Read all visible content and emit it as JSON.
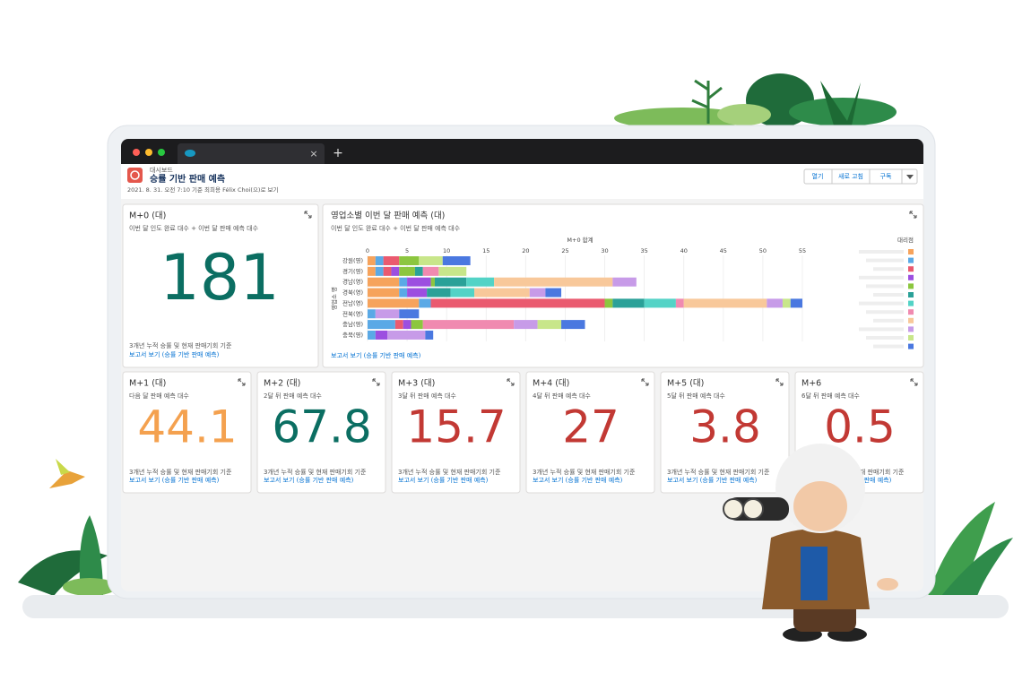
{
  "browser": {
    "new_tab": "+",
    "close_tab": "×"
  },
  "header": {
    "breadcrumb": "대시보드",
    "title": "승률 기반 판매 예측",
    "subtitle": "2021. 8. 31. 오전 7:10 기준 최희용 Félix Choi(으)로 보기",
    "buttons": [
      "열기",
      "새로 고침",
      "구독"
    ]
  },
  "summary_card": {
    "title": "M+0 (대)",
    "subtitle": "이번 달 인도 완료 대수 + 이번 달 판매 예측 대수",
    "value": 181,
    "color": "#0b6e62",
    "footer": "3개년 누적 승률 및 현재 판매기회 기준",
    "link": "보고서 보기 (승률 기반 판매 예측)"
  },
  "chart_card": {
    "title": "영업소별 이번 달 판매 예측 (대)",
    "subtitle": "이번 달 인도 완료 대수 + 이번 달 판매 예측 대수",
    "link": "보고서 보기 (승률 기반 판매 예측)",
    "chart_data": {
      "type": "bar",
      "orientation": "horizontal",
      "stacked": true,
      "x_label": "M+0 합계",
      "y_label": "영업소 명",
      "legend_title": "대리점",
      "categories": [
        "강원(영)",
        "경기(영)",
        "경남(영)",
        "경북(영)",
        "전남(영)",
        "전북(영)",
        "충남(영)",
        "충북(영)"
      ],
      "xlim": [
        0,
        55
      ],
      "xticks": [
        0,
        5,
        10,
        15,
        20,
        25,
        30,
        35,
        40,
        45,
        50,
        55
      ],
      "grid": true,
      "series": [
        {
          "color": "#f6a35c",
          "values": [
            1,
            1,
            4,
            4,
            6.5,
            null,
            null,
            null
          ]
        },
        {
          "color": "#5aa9e6",
          "values": [
            1,
            1,
            1,
            1,
            1.5,
            1,
            3.5,
            1
          ]
        },
        {
          "color": "#ea5a6f",
          "values": [
            2,
            1,
            null,
            null,
            22,
            null,
            1,
            null
          ]
        },
        {
          "color": "#9c4fe0",
          "values": [
            null,
            1,
            3,
            2.5,
            null,
            null,
            1,
            1.5
          ]
        },
        {
          "color": "#8cc63f",
          "values": [
            2.5,
            2,
            0.5,
            null,
            1,
            null,
            1.5,
            null
          ]
        },
        {
          "color": "#2aa198",
          "values": [
            null,
            1,
            4,
            3,
            4,
            null,
            null,
            null
          ]
        },
        {
          "color": "#53d3c6",
          "values": [
            null,
            null,
            3.5,
            3,
            4,
            null,
            null,
            null
          ]
        },
        {
          "color": "#f08ab0",
          "values": [
            null,
            2,
            null,
            null,
            1,
            null,
            11.5,
            null
          ]
        },
        {
          "color": "#f8c89a",
          "values": [
            null,
            null,
            15,
            7,
            10.5,
            null,
            null,
            null
          ]
        },
        {
          "color": "#c79be8",
          "values": [
            null,
            null,
            3,
            2,
            2,
            3,
            3,
            4.8
          ]
        },
        {
          "color": "#c8e68a",
          "values": [
            3,
            3.5,
            null,
            null,
            1,
            null,
            3,
            null
          ]
        },
        {
          "color": "#4a78e0",
          "values": [
            3.5,
            null,
            null,
            2,
            1.5,
            2.5,
            3,
            1
          ]
        }
      ]
    }
  },
  "metric_cards": [
    {
      "title": "M+1 (대)",
      "subtitle": "다음 달 판매 예측 대수",
      "value": 44.1,
      "color": "#f4a14f",
      "footer": "3개년 누적 승률 및 현재 판매기회 기준",
      "link": "보고서 보기 (승률 기반 판매 예측)"
    },
    {
      "title": "M+2 (대)",
      "subtitle": "2달 뒤 판매 예측 대수",
      "value": 67.8,
      "color": "#0b6e62",
      "footer": "3개년 누적 승률 및 현재 판매기회 기준",
      "link": "보고서 보기 (승률 기반 판매 예측)"
    },
    {
      "title": "M+3 (대)",
      "subtitle": "3달 뒤 판매 예측 대수",
      "value": 15.7,
      "color": "#c23934",
      "footer": "3개년 누적 승률 및 현재 판매기회 기준",
      "link": "보고서 보기 (승률 기반 판매 예측)"
    },
    {
      "title": "M+4 (대)",
      "subtitle": "4달 뒤 판매 예측 대수",
      "value": 27,
      "color": "#c23934",
      "footer": "3개년 누적 승률 및 현재 판매기회 기준",
      "link": "보고서 보기 (승률 기반 판매 예측)"
    },
    {
      "title": "M+5 (대)",
      "subtitle": "5달 뒤 판매 예측 대수",
      "value": 3.8,
      "color": "#c23934",
      "footer": "3개년 누적 승률 및 현재 판매기회 기준",
      "link": "보고서 보기 (승률 기반 판매 예측)"
    },
    {
      "title": "M+6",
      "subtitle": "6달 뒤 판매 예측 대수",
      "value": 0.5,
      "color": "#c23934",
      "footer": "3개년 누적 승률 및 현재 판매기회 기준",
      "link": "보고서 보기 (승률 기반 판매 예측)"
    }
  ]
}
